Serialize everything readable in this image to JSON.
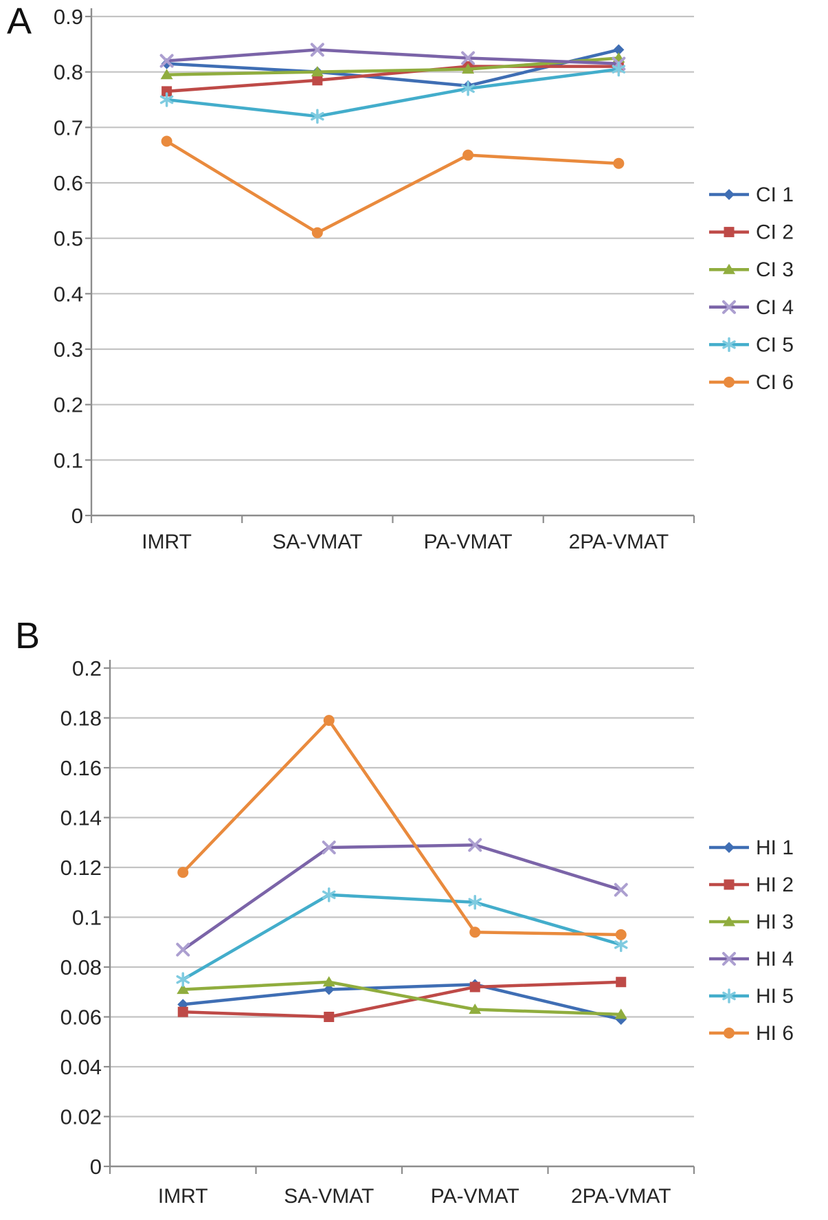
{
  "figure": {
    "background": "#ffffff",
    "grid_color": "#c3c3c3",
    "axis_color": "#8c8c8c",
    "text_color": "#262626"
  },
  "chart_data": [
    {
      "type": "line",
      "panel_label": "A",
      "categories": [
        "IMRT",
        "SA-VMAT",
        "PA-VMAT",
        "2PA-VMAT"
      ],
      "xlabel": "",
      "ylabel": "",
      "ylim": [
        0,
        0.9
      ],
      "y_ticks": [
        "0.9",
        "0.8",
        "0.7",
        "0.6",
        "0.5",
        "0.4",
        "0.3",
        "0.2",
        "0.1",
        "0"
      ],
      "grid": true,
      "legend_position": "right",
      "series": [
        {
          "name": "CI 1",
          "marker": "diamond",
          "color": "#3F6EB4",
          "values": [
            0.815,
            0.8,
            0.775,
            0.84
          ]
        },
        {
          "name": "CI 2",
          "marker": "square",
          "color": "#BE4A47",
          "values": [
            0.765,
            0.785,
            0.81,
            0.81
          ]
        },
        {
          "name": "CI 3",
          "marker": "triangle",
          "color": "#90AD3E",
          "values": [
            0.795,
            0.8,
            0.805,
            0.825
          ]
        },
        {
          "name": "CI 4",
          "marker": "x",
          "color": "#7B64A8",
          "marker_color": "#AC9FD0",
          "values": [
            0.82,
            0.84,
            0.825,
            0.815
          ]
        },
        {
          "name": "CI 5",
          "marker": "asterisk",
          "color": "#43ADCB",
          "marker_color": "#7FCBE0",
          "values": [
            0.75,
            0.72,
            0.77,
            0.805
          ]
        },
        {
          "name": "CI 6",
          "marker": "circle",
          "color": "#E98A3D",
          "values": [
            0.675,
            0.51,
            0.65,
            0.635
          ]
        }
      ]
    },
    {
      "type": "line",
      "panel_label": "B",
      "categories": [
        "IMRT",
        "SA-VMAT",
        "PA-VMAT",
        "2PA-VMAT"
      ],
      "xlabel": "",
      "ylabel": "",
      "ylim": [
        0,
        0.2
      ],
      "y_ticks": [
        "0.2",
        "0.18",
        "0.16",
        "0.14",
        "0.12",
        "0.1",
        "0.08",
        "0.06",
        "0.04",
        "0.02",
        "0"
      ],
      "grid": true,
      "legend_position": "right",
      "series": [
        {
          "name": "HI 1",
          "marker": "diamond",
          "color": "#3F6EB4",
          "values": [
            0.065,
            0.071,
            0.073,
            0.059
          ]
        },
        {
          "name": "HI 2",
          "marker": "square",
          "color": "#BE4A47",
          "values": [
            0.062,
            0.06,
            0.072,
            0.074
          ]
        },
        {
          "name": "HI 3",
          "marker": "triangle",
          "color": "#90AD3E",
          "values": [
            0.071,
            0.074,
            0.063,
            0.061
          ]
        },
        {
          "name": "HI 4",
          "marker": "x",
          "color": "#7B64A8",
          "marker_color": "#AC9FD0",
          "values": [
            0.087,
            0.128,
            0.129,
            0.111
          ]
        },
        {
          "name": "HI 5",
          "marker": "asterisk",
          "color": "#43ADCB",
          "marker_color": "#7FCBE0",
          "values": [
            0.075,
            0.109,
            0.106,
            0.089
          ]
        },
        {
          "name": "HI 6",
          "marker": "circle",
          "color": "#E98A3D",
          "values": [
            0.118,
            0.179,
            0.094,
            0.093
          ]
        }
      ]
    }
  ]
}
